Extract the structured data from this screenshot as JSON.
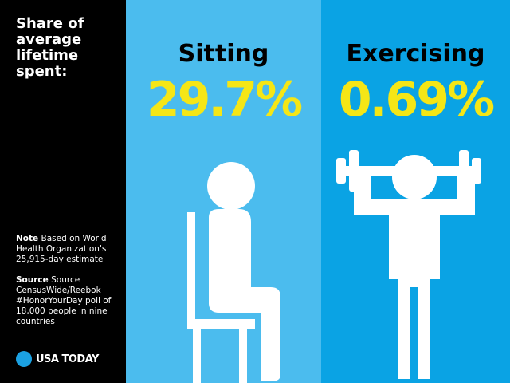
{
  "sidebar": {
    "title": "Share of average lifetime spent:",
    "note": {
      "label": "Note",
      "text": "Based on World Health Organization's 25,915-day estimate"
    },
    "source": {
      "label": "Source",
      "text": "Source CensusWide/Reebok #HonorYourDay poll of 18,000 people in nine countries"
    },
    "logo": "USA TODAY"
  },
  "panels": [
    {
      "label": "Sitting",
      "value": "29.7%"
    },
    {
      "label": "Exercising",
      "value": "0.69%"
    }
  ]
}
